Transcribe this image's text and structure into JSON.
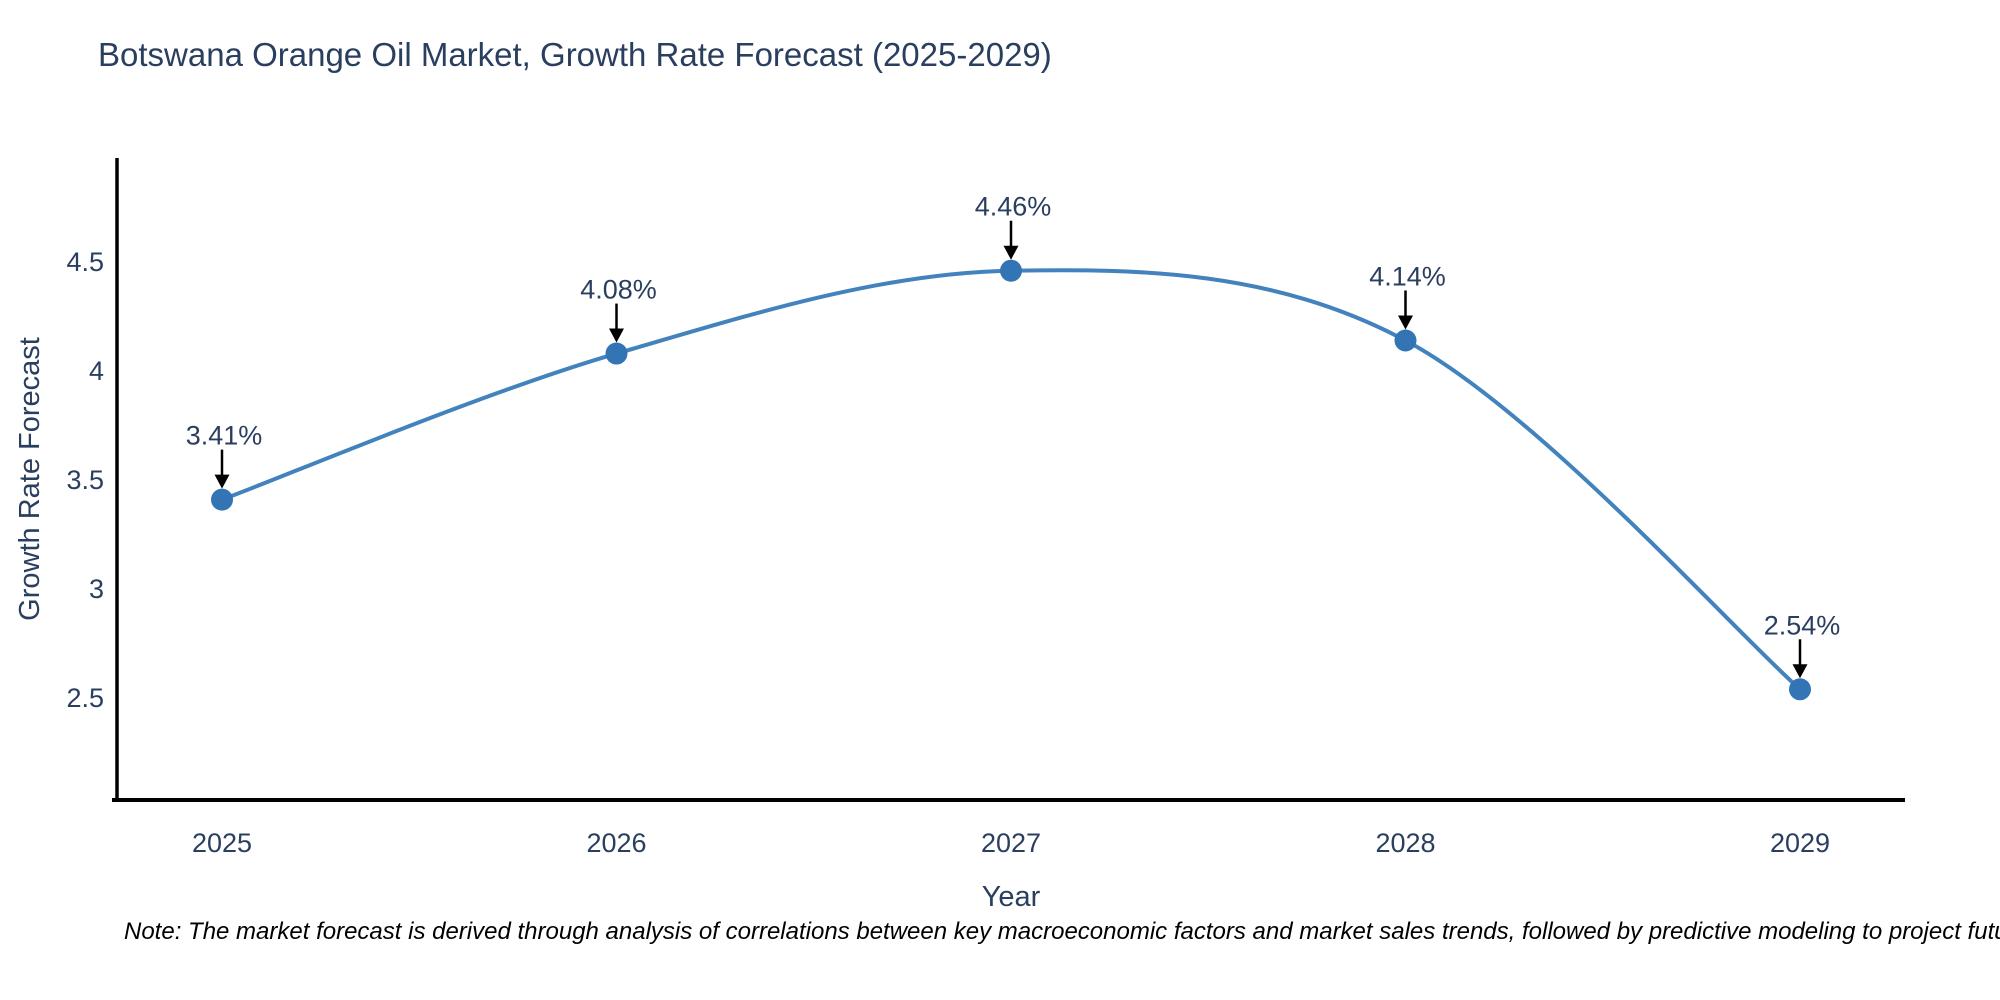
{
  "title": "Botswana Orange Oil Market, Growth Rate Forecast (2025-2029)",
  "note": "Note: The market forecast is derived through analysis of correlations between key macroeconomic factors and market sales trends, followed by predictive modeling to project future sales",
  "chart_data": {
    "type": "line",
    "title": "Botswana Orange Oil Market, Growth Rate Forecast (2025-2029)",
    "x": [
      2025,
      2026,
      2027,
      2028,
      2029
    ],
    "xticklabels": [
      "2025",
      "2026",
      "2027",
      "2028",
      "2029"
    ],
    "series": [
      {
        "name": "Growth Rate Forecast",
        "values": [
          3.41,
          4.08,
          4.46,
          4.14,
          2.54
        ]
      }
    ],
    "point_labels": [
      "3.41%",
      "4.08%",
      "4.46%",
      "4.14%",
      "2.54%"
    ],
    "xlabel": "Year",
    "ylabel": "Growth Rate Forecast",
    "yticks": [
      2.5,
      3,
      3.5,
      4,
      4.5
    ],
    "ylim": [
      2.0,
      5.0
    ],
    "grid": false,
    "legend": "none",
    "line_shape": "spline",
    "annotations": "value labels with down arrows at each point"
  },
  "colors": {
    "line": "#4383bd",
    "marker": "#3374b5",
    "chart_text": "#2a3f5f",
    "axis": "#000000",
    "arrow": "#000000",
    "note_text": "#000000",
    "background": "#ffffff"
  }
}
